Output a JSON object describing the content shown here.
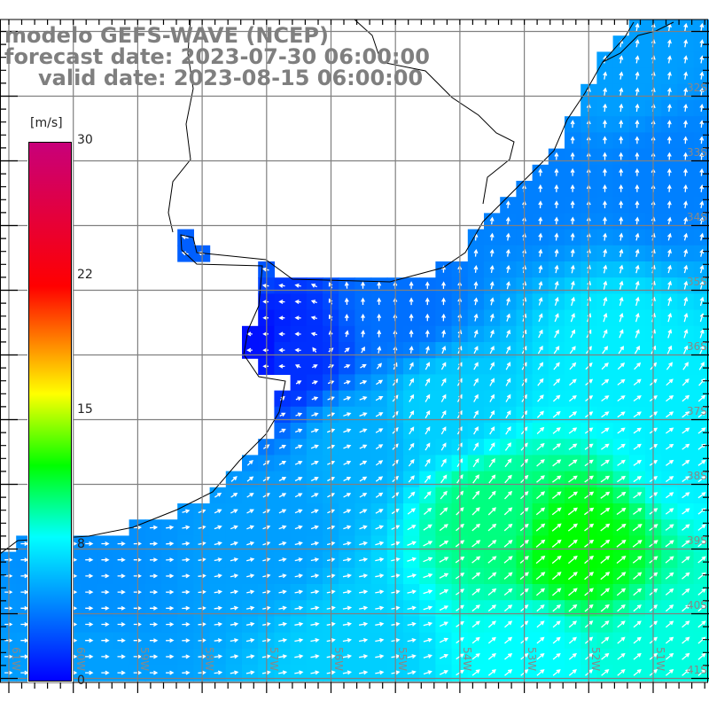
{
  "title": {
    "model": "modelo GEFS-WAVE (NCEP)",
    "forecast": "forecast date: 2023-07-30 06:00:00",
    "valid": "valid date: 2023-08-15 06:00:00"
  },
  "colorbar": {
    "unit": "[m/s]",
    "labels": [
      "30",
      "22",
      "15",
      "8",
      "0"
    ],
    "range": [
      0,
      30
    ]
  },
  "lat_labels": [
    "32S",
    "33S",
    "34S",
    "35S",
    "36S",
    "37S",
    "38S",
    "39S",
    "40S",
    "41S"
  ],
  "lon_labels": [
    "61W",
    "60W",
    "59W",
    "58W",
    "57W",
    "56W",
    "55W",
    "54W",
    "53W",
    "52W",
    "51W"
  ],
  "colors": {
    "grid": "#808080",
    "arrows": "#ffffff",
    "coast": "#000000",
    "text": "#7f7f7f"
  }
}
